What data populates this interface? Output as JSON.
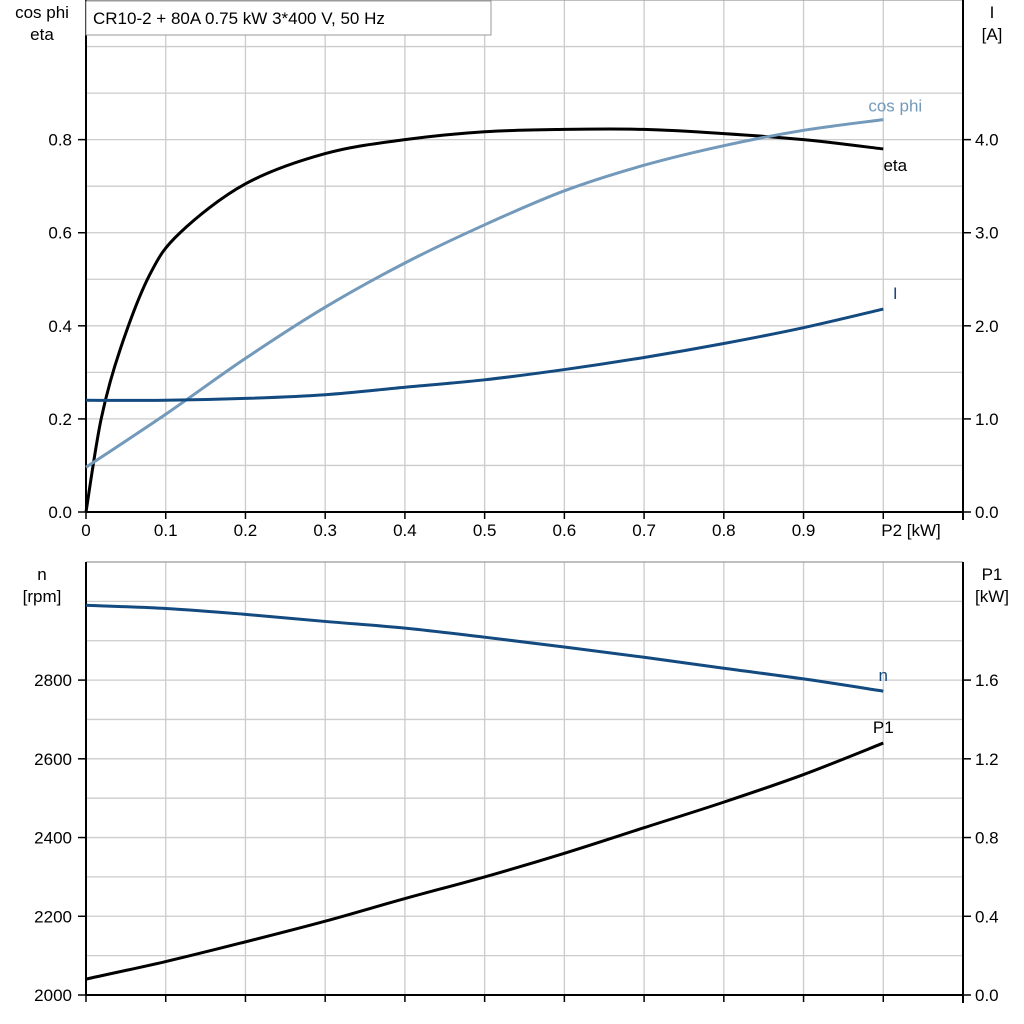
{
  "title": "CR10-2 + 80A   0.75 kW   3*400 V, 50 Hz",
  "colors": {
    "eta": "#000000",
    "cos_phi": "#7399bb",
    "I": "#134a80",
    "n": "#134a80",
    "P1": "#000000",
    "grid": "#cccccc"
  },
  "chart_data": [
    {
      "type": "line",
      "x_label": "P2 [kW]",
      "x_ticks": [
        "0",
        "0.1",
        "0.2",
        "0.3",
        "0.4",
        "0.5",
        "0.6",
        "0.7",
        "0.8",
        "0.9"
      ],
      "xlim": [
        0,
        1.1
      ],
      "y_left_label": [
        "cos phi",
        "eta"
      ],
      "y_left_ticks": [
        "0.0",
        "0.2",
        "0.4",
        "0.6",
        "0.8"
      ],
      "ylim_left": [
        0,
        1.1
      ],
      "y_right_label": [
        "I",
        "[A]"
      ],
      "y_right_ticks": [
        "0.0",
        "1.0",
        "2.0",
        "3.0",
        "4.0"
      ],
      "ylim_right": [
        0,
        5.5
      ],
      "grid": true,
      "series": [
        {
          "name": "eta",
          "axis": "left",
          "color_key": "eta",
          "x": [
            0,
            0.019,
            0.043,
            0.08,
            0.118,
            0.2,
            0.3,
            0.4,
            0.5,
            0.6,
            0.7,
            0.8,
            0.9,
            1.0
          ],
          "y": [
            0,
            0.2,
            0.35,
            0.51,
            0.6,
            0.705,
            0.77,
            0.8,
            0.817,
            0.822,
            0.822,
            0.813,
            0.8,
            0.78
          ]
        },
        {
          "name": "cos phi",
          "axis": "left",
          "color_key": "cos_phi",
          "x": [
            0,
            0.1,
            0.2,
            0.3,
            0.4,
            0.5,
            0.6,
            0.7,
            0.8,
            0.9,
            1.0
          ],
          "y": [
            0.096,
            0.21,
            0.33,
            0.44,
            0.535,
            0.617,
            0.69,
            0.745,
            0.787,
            0.82,
            0.843
          ]
        },
        {
          "name": "I",
          "axis": "right",
          "color_key": "I",
          "x": [
            0,
            0.1,
            0.2,
            0.3,
            0.4,
            0.5,
            0.6,
            0.7,
            0.8,
            0.9,
            1.0
          ],
          "y": [
            1.2,
            1.2,
            1.22,
            1.26,
            1.34,
            1.42,
            1.53,
            1.66,
            1.81,
            1.98,
            2.18
          ]
        }
      ]
    },
    {
      "type": "line",
      "xlim": [
        0,
        1.1
      ],
      "y_left_label": [
        "n",
        "[rpm]"
      ],
      "y_left_ticks": [
        "2000",
        "2200",
        "2400",
        "2600",
        "2800"
      ],
      "ylim_left": [
        2000,
        3100
      ],
      "y_right_label": [
        "P1",
        "[kW]"
      ],
      "y_right_ticks": [
        "0.0",
        "0.4",
        "0.8",
        "1.2",
        "1.6"
      ],
      "ylim_right": [
        0,
        2.2
      ],
      "grid": true,
      "series": [
        {
          "name": "n",
          "axis": "left",
          "color_key": "n",
          "x": [
            0,
            0.1,
            0.2,
            0.3,
            0.4,
            0.5,
            0.6,
            0.7,
            0.8,
            0.9,
            1.0
          ],
          "y": [
            2990,
            2982,
            2967,
            2949,
            2932,
            2909,
            2884,
            2858,
            2830,
            2803,
            2772
          ]
        },
        {
          "name": "P1",
          "axis": "right",
          "color_key": "P1",
          "x": [
            0,
            0.1,
            0.2,
            0.3,
            0.4,
            0.5,
            0.6,
            0.7,
            0.8,
            0.9,
            1.0
          ],
          "y": [
            0.081,
            0.17,
            0.27,
            0.375,
            0.49,
            0.6,
            0.72,
            0.85,
            0.98,
            1.12,
            1.28
          ]
        }
      ]
    }
  ]
}
